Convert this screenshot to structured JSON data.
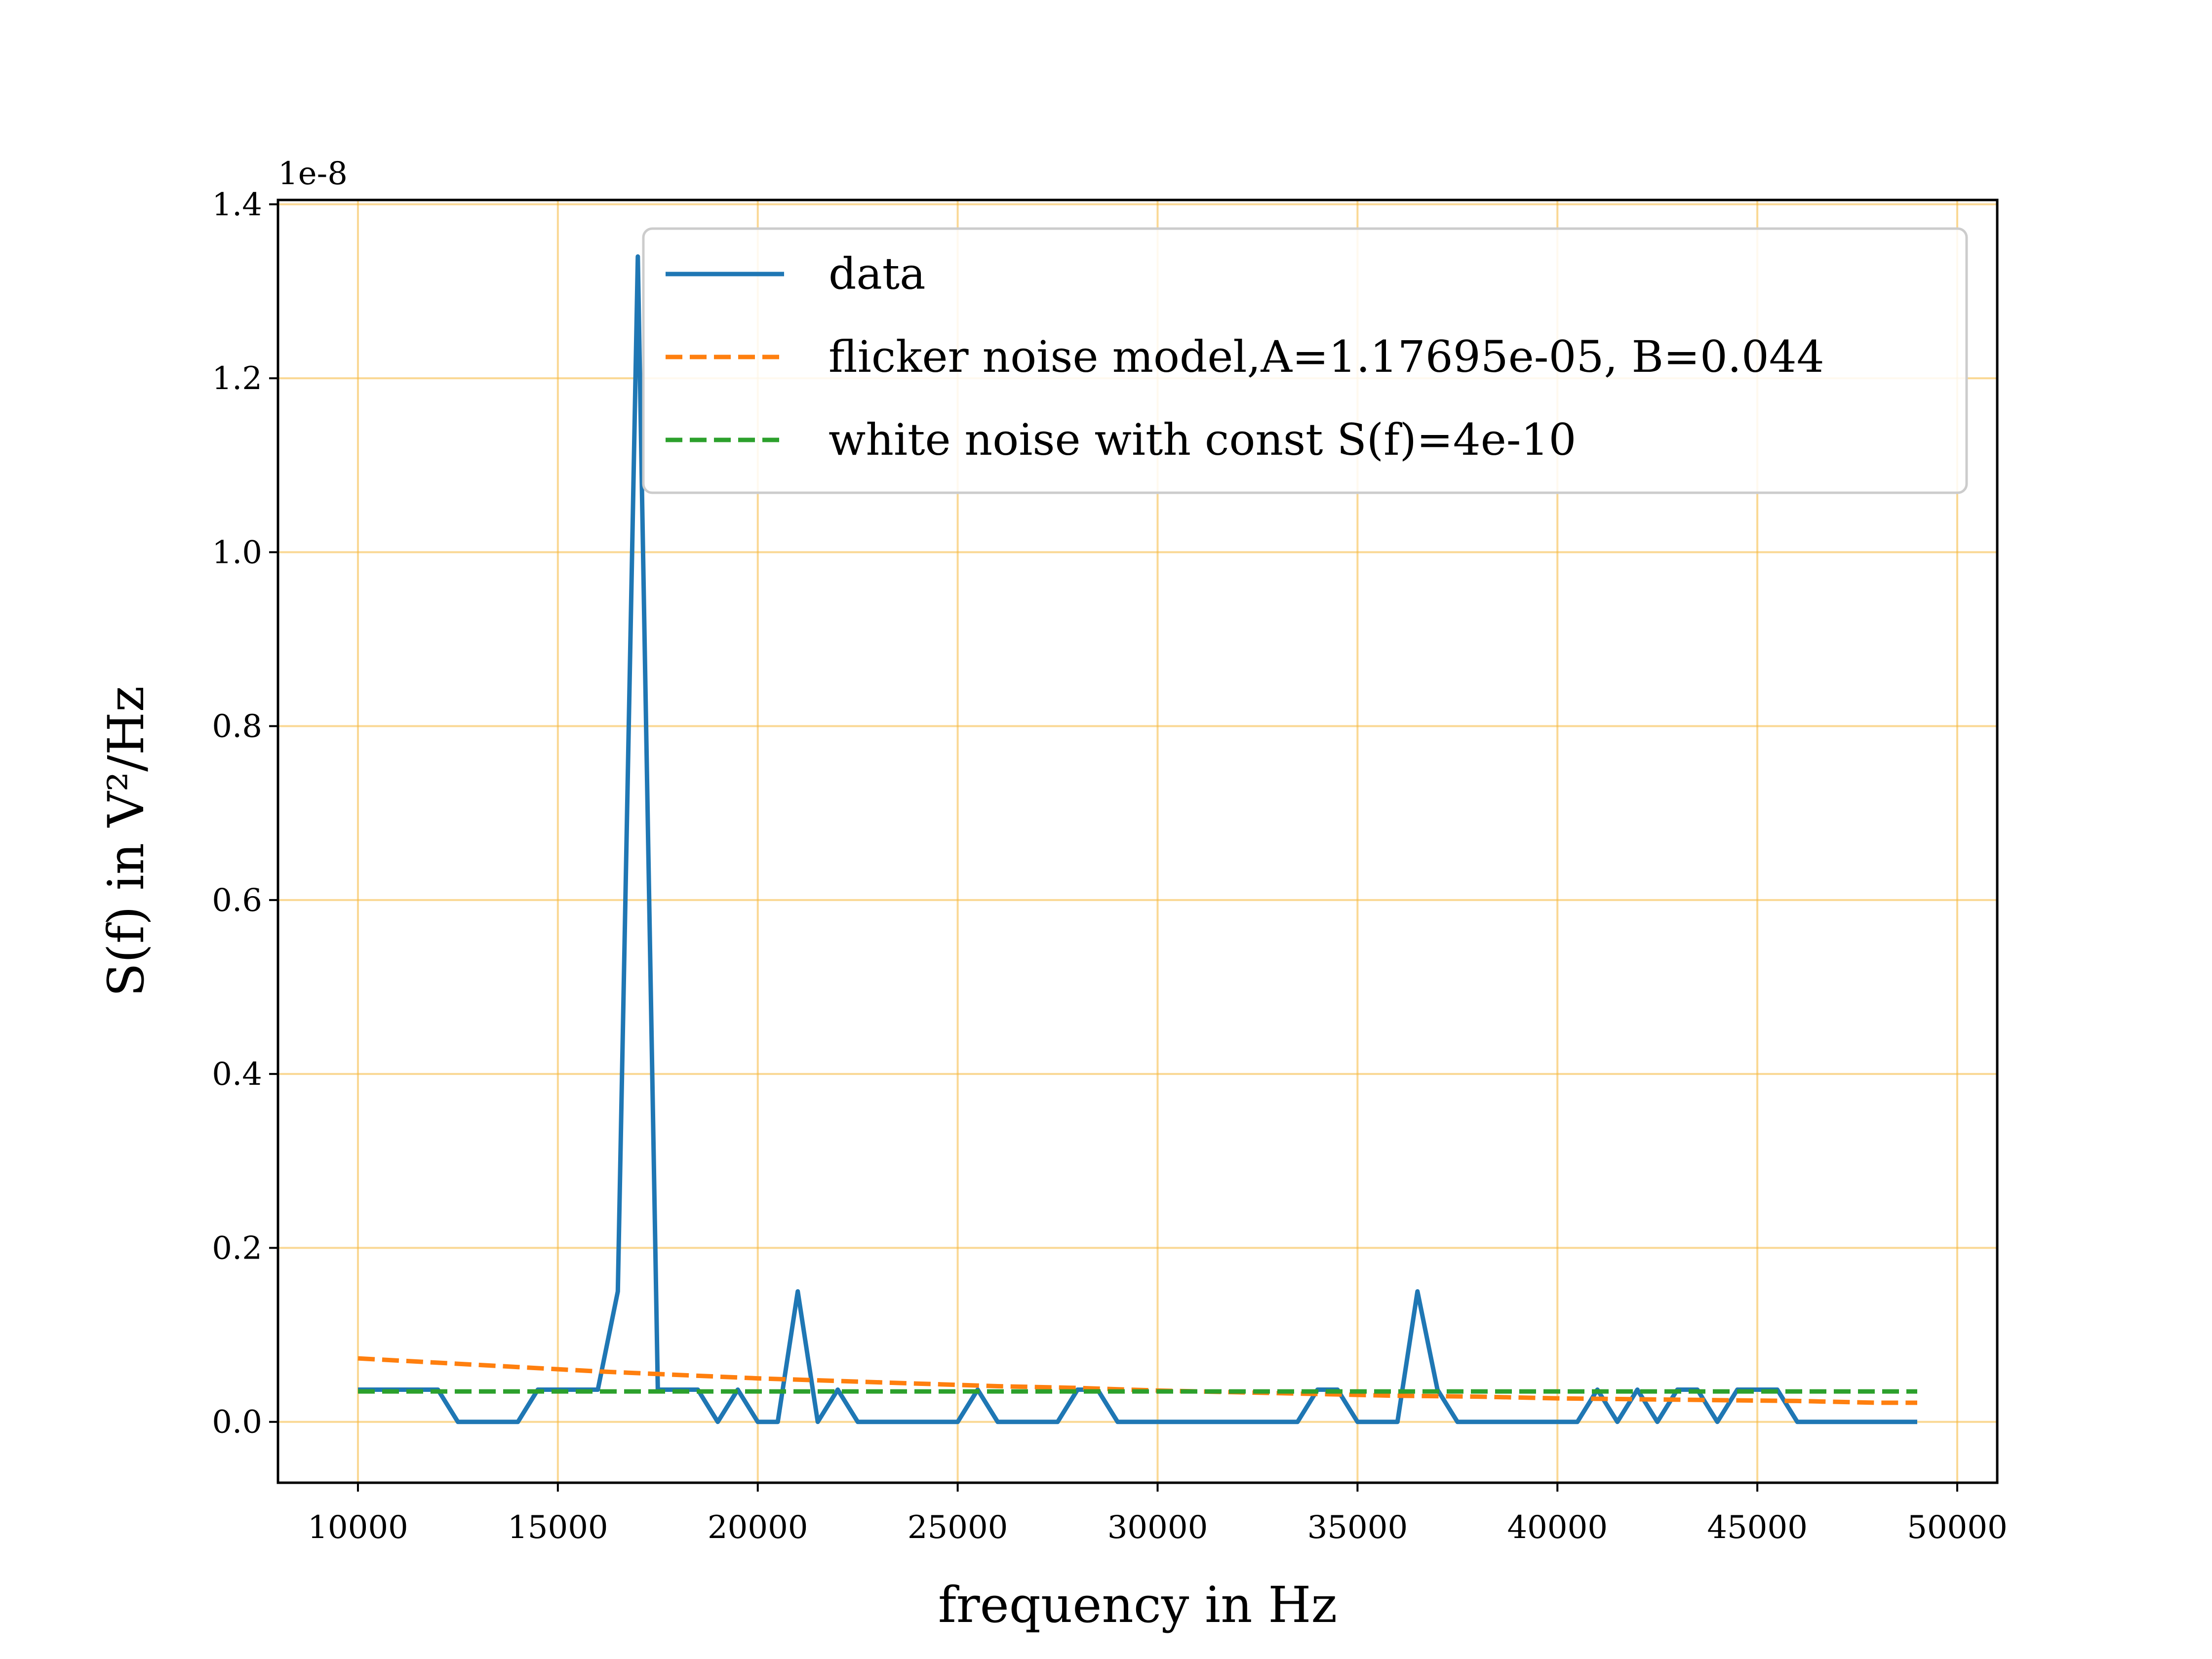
{
  "chart_data": {
    "type": "line",
    "title": "",
    "xlabel": "frequency in Hz",
    "ylabel": "S(f) in V²/Hz",
    "y_offset_label": "1e-8",
    "xlim": [
      8000,
      51000
    ],
    "ylim": [
      -0.07,
      1.405
    ],
    "x_ticks": [
      10000,
      15000,
      20000,
      25000,
      30000,
      35000,
      40000,
      45000,
      50000
    ],
    "y_ticks": [
      0.0,
      0.2,
      0.4,
      0.6,
      0.8,
      1.0,
      1.2,
      1.4
    ],
    "x_tick_labels": [
      "10000",
      "15000",
      "20000",
      "25000",
      "30000",
      "35000",
      "40000",
      "45000",
      "50000"
    ],
    "y_tick_labels": [
      "0.0",
      "0.2",
      "0.4",
      "0.6",
      "0.8",
      "1.0",
      "1.2",
      "1.4"
    ],
    "grid": true,
    "grid_color": "#f5b83d",
    "legend_position": "top-right",
    "series": [
      {
        "name": "data",
        "color": "#1f77b4",
        "style": "solid",
        "x": [
          10000,
          10500,
          11000,
          11500,
          12000,
          12500,
          13000,
          13500,
          14000,
          14500,
          15000,
          15500,
          16000,
          16500,
          17000,
          17500,
          18000,
          18500,
          19000,
          19500,
          20000,
          20500,
          21000,
          21500,
          22000,
          22500,
          23000,
          23500,
          24000,
          24500,
          25000,
          25500,
          26000,
          26500,
          27000,
          27500,
          28000,
          28500,
          29000,
          29500,
          30000,
          30500,
          31000,
          31500,
          32000,
          32500,
          33000,
          33500,
          34000,
          34500,
          35000,
          35500,
          36000,
          36500,
          37000,
          37500,
          38000,
          38500,
          39000,
          39500,
          40000,
          40500,
          41000,
          41500,
          42000,
          42500,
          43000,
          43500,
          44000,
          44500,
          45000,
          45500,
          46000,
          46500,
          47000,
          47500,
          48000,
          48500,
          49000
        ],
        "y": [
          0.037,
          0.037,
          0.037,
          0.037,
          0.037,
          0.0,
          0.0,
          0.0,
          0.0,
          0.037,
          0.037,
          0.037,
          0.037,
          0.15,
          1.34,
          0.037,
          0.037,
          0.037,
          0.0,
          0.037,
          0.0,
          0.0,
          0.15,
          0.0,
          0.037,
          0.0,
          0.0,
          0.0,
          0.0,
          0.0,
          0.0,
          0.037,
          0.0,
          0.0,
          0.0,
          0.0,
          0.037,
          0.037,
          0.0,
          0.0,
          0.0,
          0.0,
          0.0,
          0.0,
          0.0,
          0.0,
          0.0,
          0.0,
          0.037,
          0.037,
          0.0,
          0.0,
          0.0,
          0.15,
          0.037,
          0.0,
          0.0,
          0.0,
          0.0,
          0.0,
          0.0,
          0.0,
          0.037,
          0.0,
          0.037,
          0.0,
          0.037,
          0.037,
          0.0,
          0.037,
          0.037,
          0.037,
          0.0,
          0.0,
          0.0,
          0.0,
          0.0,
          0.0,
          0.0
        ]
      },
      {
        "name": "flicker noise model,A=1.17695e-05, B=0.044",
        "color": "#ff7f0e",
        "style": "dashed",
        "x": [
          10000,
          12000,
          14000,
          16000,
          18000,
          20000,
          22000,
          24000,
          26000,
          28000,
          30000,
          32000,
          34000,
          36000,
          38000,
          40000,
          42000,
          44000,
          46000,
          48000,
          49000
        ],
        "y": [
          0.073,
          0.068,
          0.063,
          0.058,
          0.054,
          0.05,
          0.047,
          0.044,
          0.041,
          0.039,
          0.036,
          0.034,
          0.032,
          0.03,
          0.029,
          0.027,
          0.026,
          0.025,
          0.024,
          0.022,
          0.022
        ]
      },
      {
        "name": "white noise with const S(f)=4e-10",
        "color": "#2ca02c",
        "style": "dashed",
        "x": [
          10000,
          49000
        ],
        "y": [
          0.035,
          0.035
        ]
      }
    ]
  }
}
